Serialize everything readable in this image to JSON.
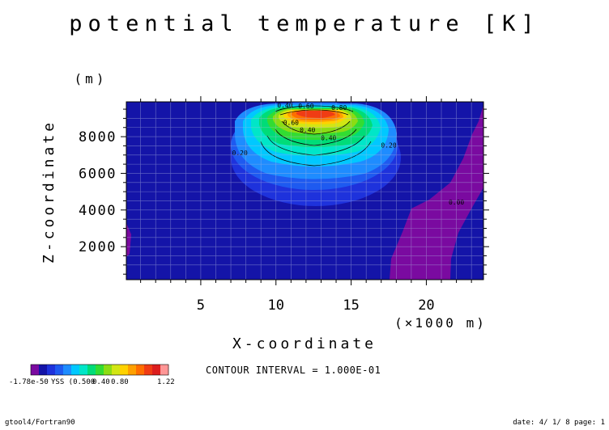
{
  "chart_data": {
    "type": "heatmap",
    "title": "potential temperature [K]",
    "xlabel": "X-coordinate",
    "x_unit": "(×1000 m)",
    "ylabel": "Z-coordinate",
    "y_unit": "(m)",
    "xlim": [
      0.05,
      23.8
    ],
    "ylim": [
      200,
      9900
    ],
    "x_ticks": [
      "5",
      "10",
      "15",
      "20"
    ],
    "y_ticks": [
      "2000",
      "4000",
      "6000",
      "8000"
    ],
    "x_tick_values": [
      5,
      10,
      15,
      20
    ],
    "y_tick_values": [
      2000,
      4000,
      6000,
      8000
    ],
    "contour_interval_text": "CONTOUR INTERVAL = 1.000E-01",
    "contour_labels": [
      {
        "text": "0.40",
        "x": 10.6,
        "y": 9600
      },
      {
        "text": "0.60",
        "x": 12.0,
        "y": 9550
      },
      {
        "text": "0.80",
        "x": 14.2,
        "y": 9450
      },
      {
        "text": "0.40",
        "x": 12.1,
        "y": 8250
      },
      {
        "text": "0.40",
        "x": 13.5,
        "y": 7800
      },
      {
        "text": "0.60",
        "x": 11.0,
        "y": 8650
      },
      {
        "text": "0.20",
        "x": 7.6,
        "y": 7000
      },
      {
        "text": "0.20",
        "x": 17.5,
        "y": 7400
      },
      {
        "text": "0.00",
        "x": 22.0,
        "y": 4300
      }
    ],
    "thermal_anomaly": {
      "center_x_km": 12.5,
      "center_z_m": 9100,
      "max_value": 1.22,
      "shading_interval": 0.1
    },
    "colorbar": {
      "colors": [
        "#7a0aa0",
        "#1414a8",
        "#1e32dc",
        "#1e5af0",
        "#1e8cff",
        "#00c8ff",
        "#00e6c8",
        "#00dc78",
        "#32dc32",
        "#8cdc14",
        "#d2e614",
        "#ffd200",
        "#ffa000",
        "#ff6e00",
        "#f03c14",
        "#dc1e1e",
        "#ff9696"
      ],
      "min_label": "-1.78e-50",
      "mid_label": "0.40",
      "label_080": "0.80",
      "max_label": "1.22",
      "overlap_text": "YSS (0.500"
    },
    "grid": true,
    "colors": {
      "background_field": "#1414a8",
      "negative_field": "#7a0aa0",
      "frame": "#000000"
    }
  },
  "footer": {
    "left": "gtool4/Fortran90",
    "right": "date: 4/ 1/ 8 page: 1"
  }
}
